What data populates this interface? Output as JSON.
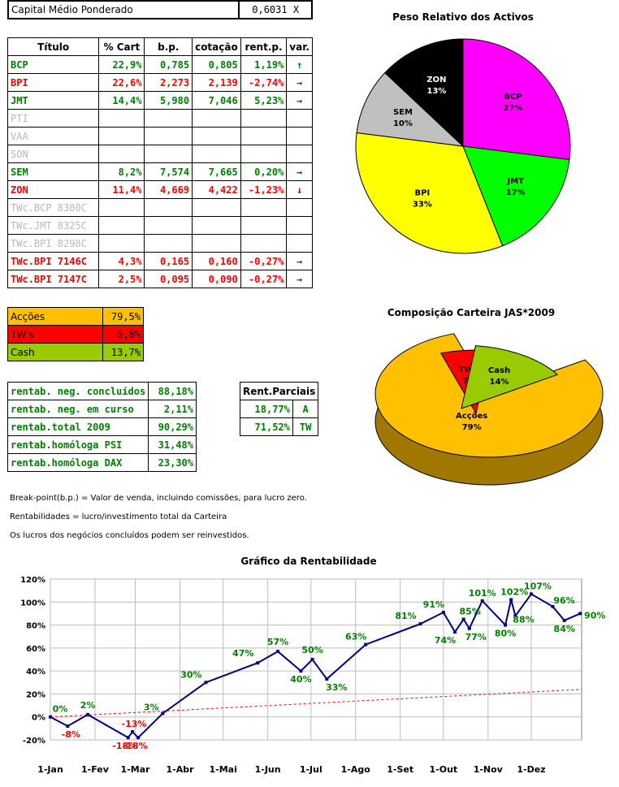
{
  "capital": {
    "label": "Capital Médio Ponderado",
    "value": "0,6031 X"
  },
  "holdings": {
    "headers": [
      "Título",
      "% Cart",
      "b.p.",
      "cotação",
      "rent.p.",
      "var."
    ],
    "rows": [
      {
        "name": "BCP",
        "pct": "22,9%",
        "bp": "0,785",
        "cot": "0,805",
        "rent": "1,19%",
        "var": "up",
        "style": "green"
      },
      {
        "name": "BPI",
        "pct": "22,6%",
        "bp": "2,273",
        "cot": "2,139",
        "rent": "-2,74%",
        "var": "right",
        "style": "red"
      },
      {
        "name": "JMT",
        "pct": "14,4%",
        "bp": "5,980",
        "cot": "7,046",
        "rent": "5,23%",
        "var": "right",
        "style": "green"
      },
      {
        "name": "PTI",
        "pct": "",
        "bp": "",
        "cot": "",
        "rent": "",
        "var": "",
        "style": "grey"
      },
      {
        "name": "VAA",
        "pct": "",
        "bp": "",
        "cot": "",
        "rent": "",
        "var": "",
        "style": "grey"
      },
      {
        "name": "SON",
        "pct": "",
        "bp": "",
        "cot": "",
        "rent": "",
        "var": "",
        "style": "grey"
      },
      {
        "name": "SEM",
        "pct": "8,2%",
        "bp": "7,574",
        "cot": "7,665",
        "rent": "0,20%",
        "var": "right",
        "style": "green"
      },
      {
        "name": "ZON",
        "pct": "11,4%",
        "bp": "4,669",
        "cot": "4,422",
        "rent": "-1,23%",
        "var": "down",
        "style": "red"
      },
      {
        "name": "TWc.BCP 8300C",
        "pct": "",
        "bp": "",
        "cot": "",
        "rent": "",
        "var": "",
        "style": "grey"
      },
      {
        "name": "TWc.JMT 8325C",
        "pct": "",
        "bp": "",
        "cot": "",
        "rent": "",
        "var": "",
        "style": "grey"
      },
      {
        "name": "TWc.BPI 8298C",
        "pct": "",
        "bp": "",
        "cot": "",
        "rent": "",
        "var": "",
        "style": "grey"
      },
      {
        "name": "TWc.BPI 7146C",
        "pct": "4,3%",
        "bp": "0,165",
        "cot": "0,160",
        "rent": "-0,27%",
        "var": "right",
        "style": "red"
      },
      {
        "name": "TWc.BPI 7147C",
        "pct": "2,5%",
        "bp": "0,095",
        "cot": "0,090",
        "rent": "-0,27%",
        "var": "right",
        "style": "red"
      }
    ]
  },
  "composition": [
    {
      "label": "Acções",
      "value": "79,5%",
      "color": "#ffc000"
    },
    {
      "label": "TW's",
      "value": "6,8%",
      "color": "#ff0000"
    },
    {
      "label": "Cash",
      "value": "13,7%",
      "color": "#99cc00"
    }
  ],
  "returns": [
    {
      "label": "rentab. neg. concluídos",
      "value": "88,18%"
    },
    {
      "label": "rentab. neg. em curso",
      "value": "2,11%"
    },
    {
      "label": "rentab.total 2009",
      "value": "90,29%"
    },
    {
      "label": "rentab.homóloga PSI",
      "value": "31,48%"
    },
    {
      "label": "rentab.homóloga DAX",
      "value": "23,30%"
    }
  ],
  "partial": {
    "title": "Rent.Parciais",
    "rows": [
      {
        "value": "18,77%",
        "tag": "A"
      },
      {
        "value": "71,52%",
        "tag": "TW"
      }
    ]
  },
  "notes": [
    "Break-point(b.p.) = Valor de venda, incluindo comissões, para lucro zero.",
    "Rentabilidades = lucro/investimento total da Carteira",
    "Os lucros dos negócios concluídos podem ser reinvestidos."
  ],
  "chart_data": [
    {
      "type": "pie",
      "title": "Peso Relativo dos Activos",
      "slices": [
        {
          "label": "BCP",
          "value": 27,
          "text": "27%",
          "color": "#ff00ff"
        },
        {
          "label": "JMT",
          "value": 17,
          "text": "17%",
          "color": "#00ff00"
        },
        {
          "label": "BPI",
          "value": 33,
          "text": "33%",
          "color": "#ffff00"
        },
        {
          "label": "SEM",
          "value": 10,
          "text": "10%",
          "color": "#c0c0c0"
        },
        {
          "label": "ZON",
          "value": 13,
          "text": "13%",
          "color": "#000000"
        }
      ]
    },
    {
      "type": "pie",
      "title": "Composição Carteira JAS*2009",
      "slices": [
        {
          "label": "Acções",
          "value": 79,
          "text": "79%",
          "color": "#ffc000"
        },
        {
          "label": "TW's",
          "value": 7,
          "text": "7%",
          "color": "#ff0000"
        },
        {
          "label": "Cash",
          "value": 14,
          "text": "14%",
          "color": "#99cc00"
        }
      ]
    },
    {
      "type": "line",
      "title": "Gráfico da Rentabilidade",
      "ylim": [
        -20,
        120
      ],
      "yticks": [
        "120%",
        "100%",
        "80%",
        "60%",
        "40%",
        "20%",
        "0%",
        "-20%"
      ],
      "xticks": [
        "1-Jan",
        "1-Fev",
        "1-Mar",
        "1-Abr",
        "1-Mai",
        "1-Jun",
        "1-Jul",
        "1-Ago",
        "1-Set",
        "1-Out",
        "1-Nov",
        "1-Dez"
      ],
      "grid": true,
      "series": [
        {
          "color": "#000080",
          "points": [
            {
              "x": "1-Jan",
              "y": 0,
              "label": "0%"
            },
            {
              "x": "13-Jan",
              "y": -8,
              "label": "-8%"
            },
            {
              "x": "27-Jan",
              "y": 2,
              "label": "2%"
            },
            {
              "x": "24-Fev",
              "y": -18,
              "label": "-18%"
            },
            {
              "x": "27-Fev",
              "y": -13,
              "label": "-13%"
            },
            {
              "x": "3-Mar",
              "y": -18,
              "label": "-18%"
            },
            {
              "x": "20-Mar",
              "y": 3,
              "label": "3%"
            },
            {
              "x": "19-Abr",
              "y": 30,
              "label": "30%"
            },
            {
              "x": "25-Mai",
              "y": 47,
              "label": "47%"
            },
            {
              "x": "8-Jun",
              "y": 57,
              "label": "57%"
            },
            {
              "x": "24-Jun",
              "y": 40,
              "label": "40%"
            },
            {
              "x": "2-Jul",
              "y": 50,
              "label": "50%"
            },
            {
              "x": "12-Jul",
              "y": 33,
              "label": "33%"
            },
            {
              "x": "8-Ago",
              "y": 63,
              "label": "63%"
            },
            {
              "x": "15-Set",
              "y": 81,
              "label": "81%"
            },
            {
              "x": "1-Out",
              "y": 91,
              "label": "91%"
            },
            {
              "x": "9-Out",
              "y": 74,
              "label": "74%"
            },
            {
              "x": "15-Out",
              "y": 85,
              "label": "85%"
            },
            {
              "x": "19-Out",
              "y": 77,
              "label": "77%"
            },
            {
              "x": "28-Out",
              "y": 101,
              "label": "101%"
            },
            {
              "x": "13-Nov",
              "y": 80,
              "label": "80%"
            },
            {
              "x": "17-Nov",
              "y": 102,
              "label": "102%"
            },
            {
              "x": "20-Nov",
              "y": 88,
              "label": "88%"
            },
            {
              "x": "1-Dez",
              "y": 107,
              "label": "107%"
            },
            {
              "x": "16-Dez",
              "y": 96,
              "label": "96%"
            },
            {
              "x": "24-Dez",
              "y": 84,
              "label": "84%"
            },
            {
              "x": "4-Jan",
              "y": 90,
              "label": "90%"
            }
          ]
        },
        {
          "color": "#ff0000",
          "dashed": true,
          "points": [
            {
              "x": "1-Jan",
              "y": 0
            },
            {
              "x": "15-Jan",
              "y": 24
            }
          ]
        }
      ]
    }
  ]
}
